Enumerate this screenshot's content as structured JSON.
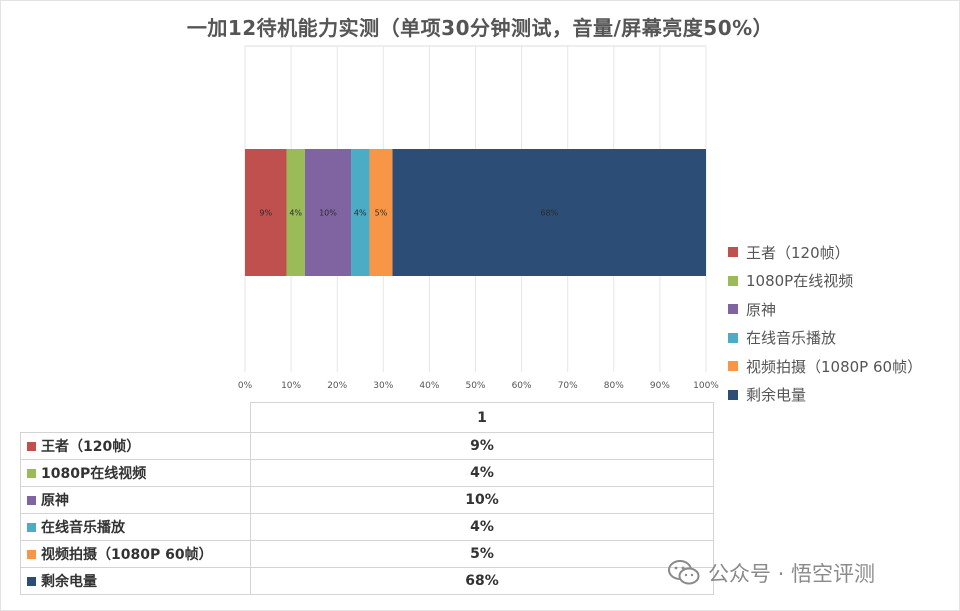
{
  "chart_data": {
    "type": "bar",
    "orientation": "horizontal-stacked",
    "title": "一加12待机能力实测（单项30分钟测试，音量/屏幕亮度50%）",
    "categories": [
      "1"
    ],
    "series": [
      {
        "name": "王者（120帧）",
        "values": [
          9
        ],
        "label": "9%",
        "color": "#c0504d"
      },
      {
        "name": "1080P在线视频",
        "values": [
          4
        ],
        "label": "4%",
        "color": "#9bbb59"
      },
      {
        "name": "原神",
        "values": [
          10
        ],
        "label": "10%",
        "color": "#8064a2"
      },
      {
        "name": "在线音乐播放",
        "values": [
          4
        ],
        "label": "4%",
        "color": "#4bacc6"
      },
      {
        "name": "视频拍摄（1080P 60帧）",
        "values": [
          5
        ],
        "label": "5%",
        "color": "#f79646"
      },
      {
        "name": "剩余电量",
        "values": [
          68
        ],
        "label": "68%",
        "color": "#2c4d75"
      }
    ],
    "xlim": [
      0,
      100
    ],
    "x_ticks": [
      "0%",
      "10%",
      "20%",
      "30%",
      "40%",
      "50%",
      "60%",
      "70%",
      "80%",
      "90%",
      "100%"
    ],
    "grid": true,
    "legend": "right"
  },
  "table": {
    "header": "1",
    "rows": [
      {
        "label": "王者（120帧）",
        "value": "9%",
        "color": "#c0504d"
      },
      {
        "label": "1080P在线视频",
        "value": "4%",
        "color": "#9bbb59"
      },
      {
        "label": "原神",
        "value": "10%",
        "color": "#8064a2"
      },
      {
        "label": "在线音乐播放",
        "value": "4%",
        "color": "#4bacc6"
      },
      {
        "label": "视频拍摄（1080P 60帧）",
        "value": "5%",
        "color": "#f79646"
      },
      {
        "label": "剩余电量",
        "value": "68%",
        "color": "#2c4d75"
      }
    ]
  },
  "watermark": {
    "text": "公众号 · 悟空评测",
    "icon": "wechat-icon"
  }
}
